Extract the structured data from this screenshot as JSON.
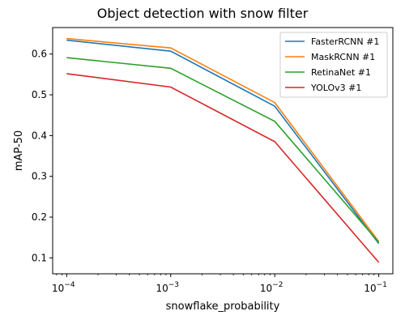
{
  "chart_data": {
    "type": "line",
    "title": "Object detection with snow filter",
    "xlabel": "snowflake_probability",
    "ylabel": "mAP-50",
    "x_scale": "log",
    "x": [
      0.0001,
      0.001,
      0.01,
      0.1
    ],
    "x_tick_labels": [
      {
        "base": "10",
        "exp": "−4"
      },
      {
        "base": "10",
        "exp": "−3"
      },
      {
        "base": "10",
        "exp": "−2"
      },
      {
        "base": "10",
        "exp": "−1"
      }
    ],
    "y_ticks": [
      0.1,
      0.2,
      0.3,
      0.4,
      0.5,
      0.6
    ],
    "y_tick_labels": [
      "0.1",
      "0.2",
      "0.3",
      "0.4",
      "0.5",
      "0.6"
    ],
    "xlim": [
      7.33e-05,
      0.1365
    ],
    "ylim": [
      0.061,
      0.665
    ],
    "grid": false,
    "legend_position": "top-right",
    "series": [
      {
        "name": "FasterRCNN #1",
        "color": "#1f77b4",
        "values": [
          0.634,
          0.607,
          0.472,
          0.135
        ]
      },
      {
        "name": "MaskRCNN #1",
        "color": "#ff7f0e",
        "values": [
          0.638,
          0.615,
          0.481,
          0.14
        ]
      },
      {
        "name": "RetinaNet #1",
        "color": "#2ca02c",
        "values": [
          0.591,
          0.565,
          0.435,
          0.138
        ]
      },
      {
        "name": "YOLOv3 #1",
        "color": "#d62728",
        "values": [
          0.552,
          0.519,
          0.385,
          0.089
        ]
      }
    ]
  }
}
